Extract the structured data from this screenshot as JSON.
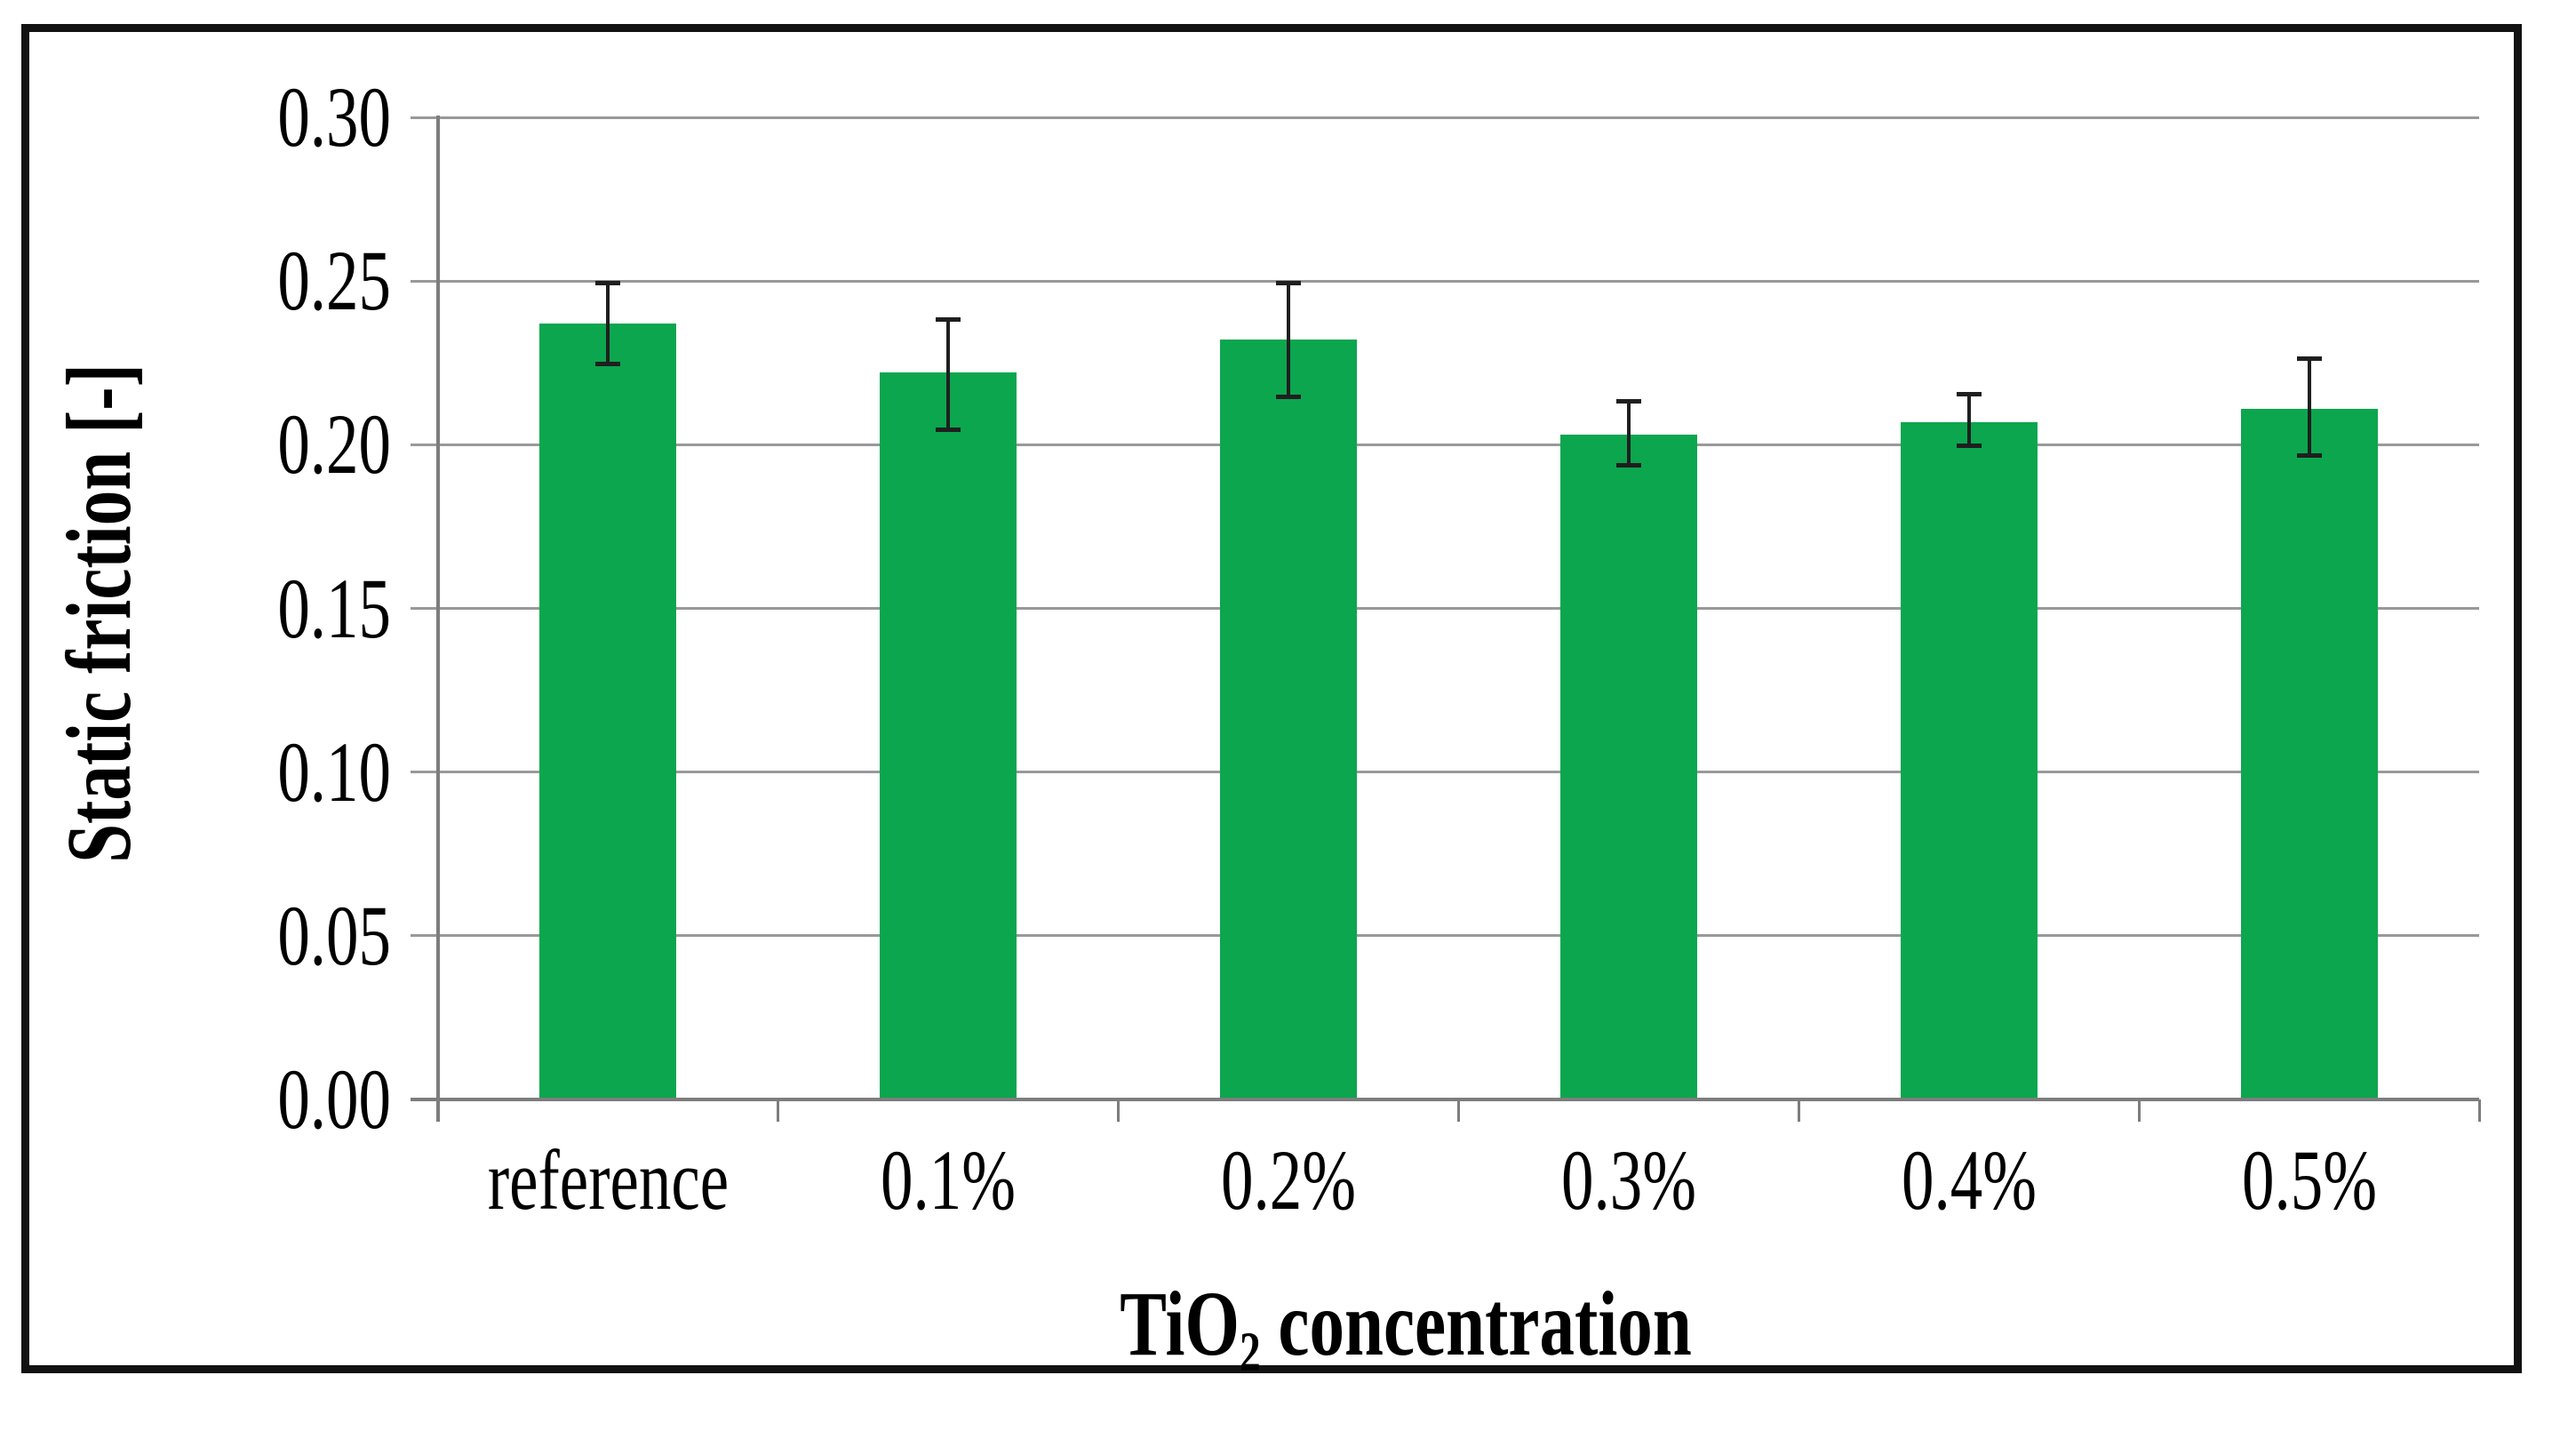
{
  "chart_data": {
    "type": "bar",
    "title": "",
    "categories": [
      "reference",
      "0.1%",
      "0.2%",
      "0.3%",
      "0.4%",
      "0.5%"
    ],
    "values": [
      0.237,
      0.222,
      0.232,
      0.203,
      0.207,
      0.211
    ],
    "error_top": [
      0.25,
      0.239,
      0.25,
      0.214,
      0.216,
      0.227
    ],
    "error_bottom": [
      0.224,
      0.204,
      0.214,
      0.193,
      0.199,
      0.196
    ],
    "ylabel": "Static friction [-]",
    "xlabel_main": "TiO",
    "xlabel_sub": "2",
    "xlabel_rest": " concentration",
    "ylim": [
      0.0,
      0.3
    ],
    "ytick_step": 0.05,
    "yticks": [
      "0.00",
      "0.05",
      "0.10",
      "0.15",
      "0.20",
      "0.25",
      "0.30"
    ],
    "grid": "horizontal",
    "legend": "none",
    "colors": {
      "bar": "#0CA64E",
      "gridline": "#999999",
      "axis": "#7D7D7D",
      "error_bar": "#1F1F1F",
      "border": "#121212",
      "background": "#FFFFFF",
      "text": "#000000"
    }
  }
}
